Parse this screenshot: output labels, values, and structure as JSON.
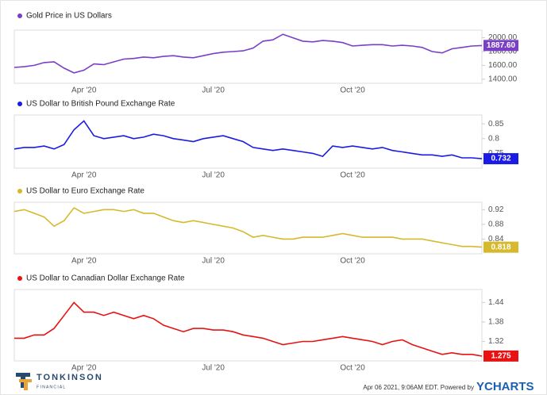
{
  "chart_data": [
    {
      "type": "line",
      "title": "Gold Price in US Dollars",
      "color": "#7a3fc6",
      "categories": [
        null,
        null,
        null,
        null,
        null,
        null,
        null,
        "Apr '20",
        null,
        null,
        null,
        null,
        null,
        null,
        null,
        null,
        null,
        null,
        null,
        null,
        "Jul '20",
        null,
        null,
        null,
        null,
        null,
        null,
        null,
        null,
        null,
        null,
        null,
        null,
        null,
        "Oct '20",
        null,
        null,
        null,
        null,
        null,
        null,
        null,
        null,
        null,
        null,
        null,
        null,
        null
      ],
      "values": [
        1570,
        1580,
        1600,
        1640,
        1650,
        1560,
        1490,
        1530,
        1620,
        1610,
        1650,
        1690,
        1700,
        1720,
        1710,
        1730,
        1740,
        1720,
        1710,
        1740,
        1770,
        1790,
        1800,
        1810,
        1850,
        1950,
        1970,
        2050,
        2000,
        1950,
        1940,
        1960,
        1950,
        1930,
        1880,
        1890,
        1900,
        1900,
        1880,
        1890,
        1880,
        1860,
        1800,
        1780,
        1840,
        1860,
        1880,
        1887.6
      ],
      "value_labels": [
        null,
        null,
        null,
        null,
        null,
        null,
        null,
        null,
        null,
        null,
        null,
        null,
        null,
        null,
        null,
        null,
        null,
        null,
        null,
        null,
        null,
        null,
        null,
        null,
        null,
        null,
        null,
        null,
        null,
        null,
        null,
        null,
        null,
        null,
        null,
        null,
        null,
        null,
        null,
        null,
        null,
        null,
        null,
        null,
        null,
        null,
        null,
        "1887.60"
      ],
      "ylim": [
        1340,
        2110
      ],
      "yticks": [
        {
          "value": 1400,
          "label": "1400.00"
        },
        {
          "value": 1600,
          "label": "1600.00"
        },
        {
          "value": 1800,
          "label": "1800.00"
        },
        {
          "value": 2000,
          "label": "2000.00"
        }
      ]
    },
    {
      "type": "line",
      "title": "US Dollar to British Pound Exchange Rate",
      "color": "#1b1be6",
      "categories": [
        null,
        null,
        null,
        null,
        null,
        null,
        null,
        "Apr '20",
        null,
        null,
        null,
        null,
        null,
        null,
        null,
        null,
        null,
        null,
        null,
        null,
        "Jul '20",
        null,
        null,
        null,
        null,
        null,
        null,
        null,
        null,
        null,
        null,
        null,
        null,
        null,
        "Oct '20",
        null,
        null,
        null,
        null,
        null,
        null,
        null,
        null,
        null,
        null,
        null,
        null,
        null
      ],
      "values": [
        0.765,
        0.77,
        0.77,
        0.775,
        0.765,
        0.78,
        0.83,
        0.86,
        0.81,
        0.8,
        0.805,
        0.81,
        0.8,
        0.805,
        0.815,
        0.81,
        0.8,
        0.795,
        0.79,
        0.8,
        0.805,
        0.81,
        0.8,
        0.79,
        0.77,
        0.765,
        0.76,
        0.765,
        0.76,
        0.755,
        0.75,
        0.74,
        0.775,
        0.77,
        0.775,
        0.77,
        0.765,
        0.77,
        0.76,
        0.755,
        0.75,
        0.745,
        0.745,
        0.74,
        0.745,
        0.735,
        0.735,
        0.732
      ],
      "value_labels": [
        null,
        null,
        null,
        null,
        null,
        null,
        null,
        null,
        null,
        null,
        null,
        null,
        null,
        null,
        null,
        null,
        null,
        null,
        null,
        null,
        null,
        null,
        null,
        null,
        null,
        null,
        null,
        null,
        null,
        null,
        null,
        null,
        null,
        null,
        null,
        null,
        null,
        null,
        null,
        null,
        null,
        null,
        null,
        null,
        null,
        null,
        null,
        "0.732"
      ],
      "ylim": [
        0.7,
        0.88
      ],
      "yticks": [
        0.75,
        0.8,
        0.85
      ]
    },
    {
      "type": "line",
      "title": "US Dollar to Euro Exchange Rate",
      "color": "#d6b92c",
      "categories": [
        null,
        null,
        null,
        null,
        null,
        null,
        null,
        "Apr '20",
        null,
        null,
        null,
        null,
        null,
        null,
        null,
        null,
        null,
        null,
        null,
        null,
        "Jul '20",
        null,
        null,
        null,
        null,
        null,
        null,
        null,
        null,
        null,
        null,
        null,
        null,
        null,
        "Oct '20",
        null,
        null,
        null,
        null,
        null,
        null,
        null,
        null,
        null,
        null,
        null,
        null,
        null
      ],
      "values": [
        0.915,
        0.92,
        0.91,
        0.9,
        0.875,
        0.89,
        0.925,
        0.91,
        0.915,
        0.92,
        0.92,
        0.915,
        0.92,
        0.91,
        0.91,
        0.9,
        0.89,
        0.885,
        0.89,
        0.885,
        0.88,
        0.875,
        0.87,
        0.86,
        0.845,
        0.85,
        0.845,
        0.84,
        0.84,
        0.845,
        0.845,
        0.845,
        0.85,
        0.855,
        0.85,
        0.845,
        0.845,
        0.845,
        0.845,
        0.84,
        0.84,
        0.84,
        0.835,
        0.83,
        0.825,
        0.82,
        0.82,
        0.818
      ],
      "value_labels": [
        null,
        null,
        null,
        null,
        null,
        null,
        null,
        null,
        null,
        null,
        null,
        null,
        null,
        null,
        null,
        null,
        null,
        null,
        null,
        null,
        null,
        null,
        null,
        null,
        null,
        null,
        null,
        null,
        null,
        null,
        null,
        null,
        null,
        null,
        null,
        null,
        null,
        null,
        null,
        null,
        null,
        null,
        null,
        null,
        null,
        null,
        null,
        "0.818"
      ],
      "ylim": [
        0.8,
        0.94
      ],
      "yticks": [
        0.84,
        0.88,
        0.92
      ]
    },
    {
      "type": "line",
      "title": "US Dollar to Canadian Dollar Exchange Rate",
      "color": "#e81212",
      "categories": [
        null,
        null,
        null,
        null,
        null,
        null,
        null,
        "Apr '20",
        null,
        null,
        null,
        null,
        null,
        null,
        null,
        null,
        null,
        null,
        null,
        null,
        "Jul '20",
        null,
        null,
        null,
        null,
        null,
        null,
        null,
        null,
        null,
        null,
        null,
        null,
        null,
        "Oct '20",
        null,
        null,
        null,
        null,
        null,
        null,
        null,
        null,
        null,
        null,
        null,
        null,
        null
      ],
      "values": [
        1.33,
        1.33,
        1.34,
        1.34,
        1.36,
        1.4,
        1.44,
        1.41,
        1.41,
        1.4,
        1.41,
        1.4,
        1.39,
        1.4,
        1.39,
        1.37,
        1.36,
        1.35,
        1.36,
        1.36,
        1.355,
        1.355,
        1.35,
        1.34,
        1.335,
        1.33,
        1.32,
        1.31,
        1.315,
        1.32,
        1.32,
        1.325,
        1.33,
        1.335,
        1.33,
        1.325,
        1.32,
        1.31,
        1.32,
        1.325,
        1.31,
        1.3,
        1.29,
        1.28,
        1.285,
        1.28,
        1.28,
        1.275
      ],
      "value_labels": [
        null,
        null,
        null,
        null,
        null,
        null,
        null,
        null,
        null,
        null,
        null,
        null,
        null,
        null,
        null,
        null,
        null,
        null,
        null,
        null,
        null,
        null,
        null,
        null,
        null,
        null,
        null,
        null,
        null,
        null,
        null,
        null,
        null,
        null,
        null,
        null,
        null,
        null,
        null,
        null,
        null,
        null,
        null,
        null,
        null,
        null,
        null,
        "1.275"
      ],
      "ylim": [
        1.26,
        1.48
      ],
      "yticks": [
        1.32,
        1.38,
        1.44
      ]
    }
  ],
  "footer": {
    "brand": "TONKINSON",
    "brand_sub": "F I N A N C I A L",
    "timestamp": "Apr 06 2021, 9:06AM EDT.  Powered by",
    "provider": "YCHARTS"
  }
}
